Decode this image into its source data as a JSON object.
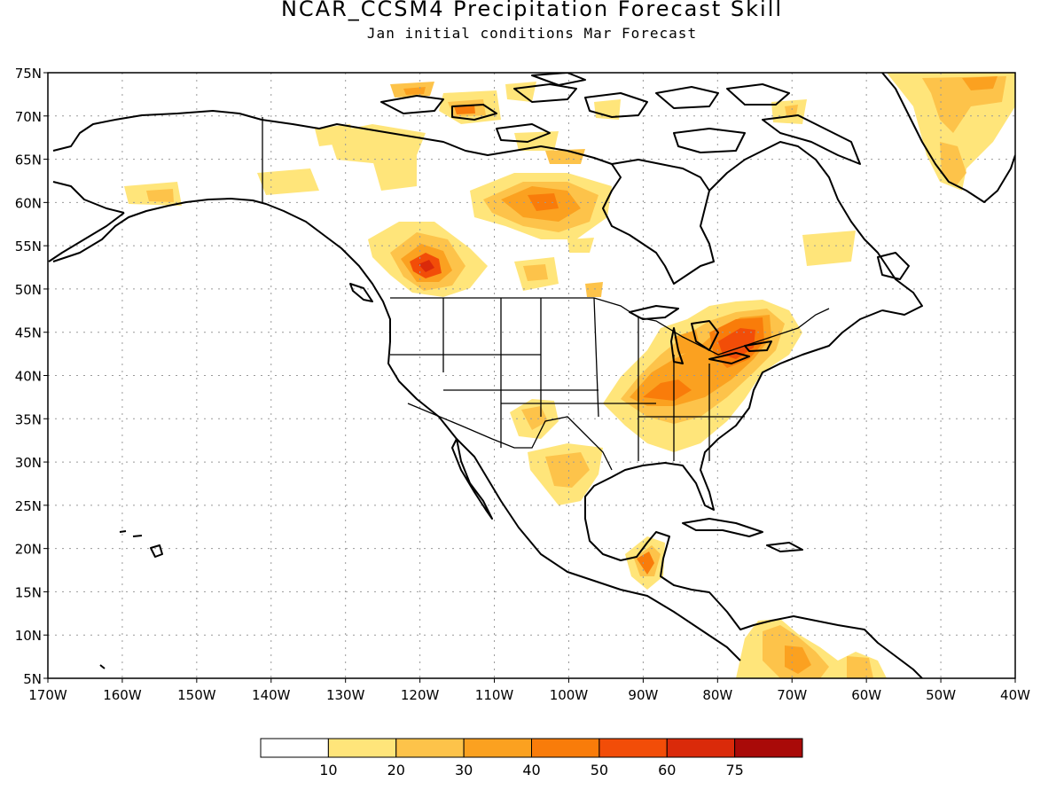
{
  "title": "NCAR_CCSM4 Precipitation Forecast Skill",
  "subtitle": "Jan initial conditions  Mar Forecast",
  "lat_labels": [
    "75N",
    "70N",
    "65N",
    "60N",
    "55N",
    "50N",
    "45N",
    "40N",
    "35N",
    "30N",
    "25N",
    "20N",
    "15N",
    "10N",
    "5N"
  ],
  "lon_labels": [
    "170W",
    "160W",
    "150W",
    "140W",
    "130W",
    "120W",
    "110W",
    "100W",
    "90W",
    "80W",
    "70W",
    "60W",
    "50W",
    "40W"
  ],
  "colorbar": {
    "colors": [
      "#ffffff",
      "#ffe57a",
      "#fdc34a",
      "#fba120",
      "#f97c0a",
      "#f24d08",
      "#da2a0a",
      "#a90a08"
    ],
    "labels": [
      "10",
      "20",
      "30",
      "40",
      "50",
      "60",
      "75"
    ]
  }
}
